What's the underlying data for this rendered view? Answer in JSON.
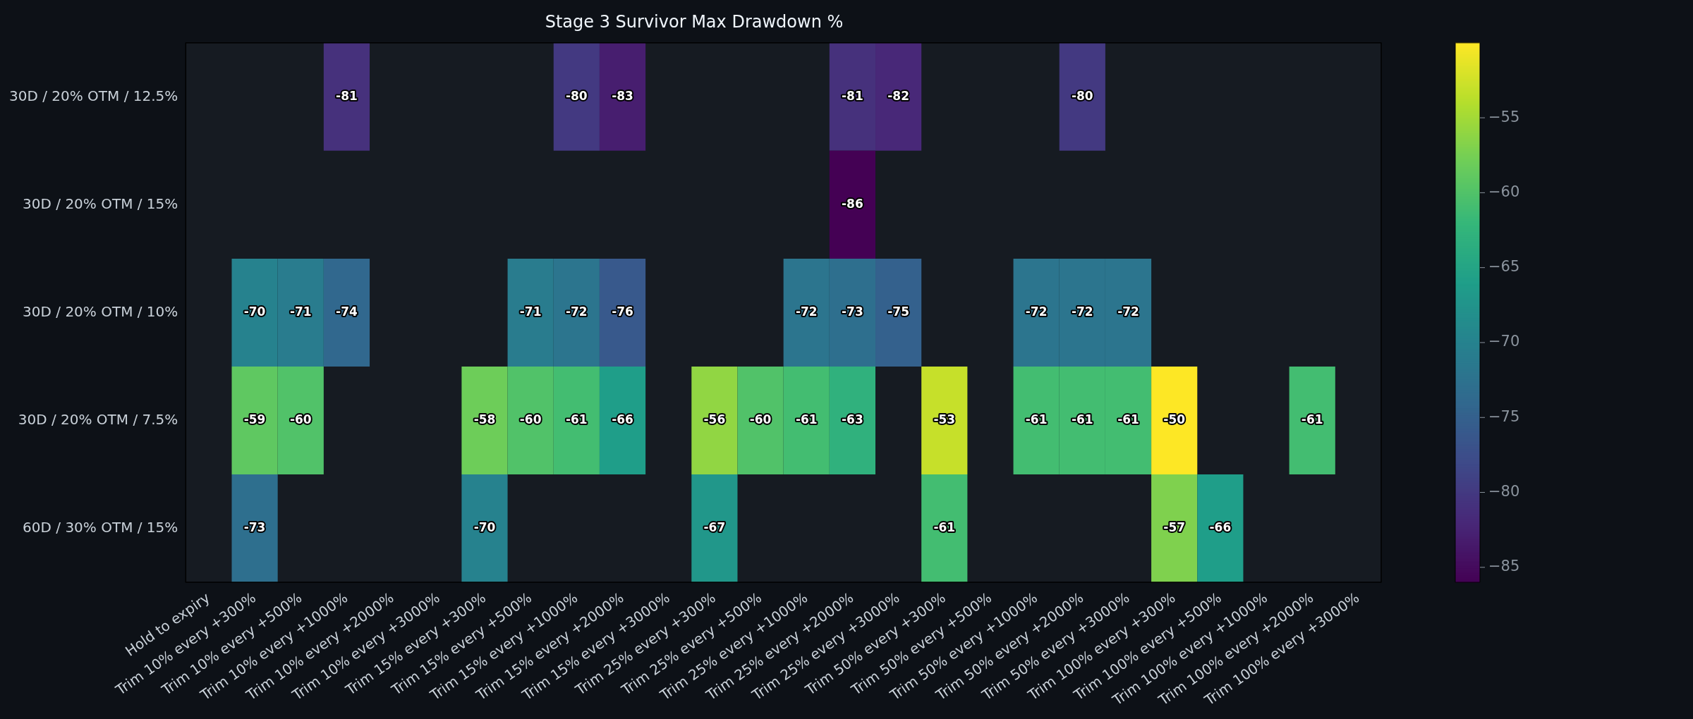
{
  "chart_data": {
    "type": "heatmap",
    "title": "Stage 3 Survivor Max Drawdown %",
    "categories": [
      "Hold to expiry",
      "Trim 10% every +300%",
      "Trim 10% every +500%",
      "Trim 10% every +1000%",
      "Trim 10% every +2000%",
      "Trim 10% every +3000%",
      "Trim 15% every +300%",
      "Trim 15% every +500%",
      "Trim 15% every +1000%",
      "Trim 15% every +2000%",
      "Trim 15% every +3000%",
      "Trim 25% every +300%",
      "Trim 25% every +500%",
      "Trim 25% every +1000%",
      "Trim 25% every +2000%",
      "Trim 25% every +3000%",
      "Trim 50% every +300%",
      "Trim 50% every +500%",
      "Trim 50% every +1000%",
      "Trim 50% every +2000%",
      "Trim 50% every +3000%",
      "Trim 100% every +300%",
      "Trim 100% every +500%",
      "Trim 100% every +1000%",
      "Trim 100% every +2000%",
      "Trim 100% every +3000%"
    ],
    "y_categories": [
      "30D / 20% OTM / 12.5%",
      "30D / 20% OTM / 15%",
      "30D / 20% OTM / 10%",
      "30D / 20% OTM / 7.5%",
      "60D / 30% OTM / 15%"
    ],
    "cells": [
      [
        null,
        null,
        null,
        -81,
        null,
        null,
        null,
        null,
        -80,
        -83,
        null,
        null,
        null,
        null,
        -81,
        -82,
        null,
        null,
        null,
        -80,
        null,
        null,
        null,
        null,
        null,
        null
      ],
      [
        null,
        null,
        null,
        null,
        null,
        null,
        null,
        null,
        null,
        null,
        null,
        null,
        null,
        null,
        -86,
        null,
        null,
        null,
        null,
        null,
        null,
        null,
        null,
        null,
        null,
        null
      ],
      [
        null,
        -70,
        -71,
        -74,
        null,
        null,
        null,
        -71,
        -72,
        -76,
        null,
        null,
        null,
        -72,
        -73,
        -75,
        null,
        null,
        -72,
        -72,
        -72,
        null,
        null,
        null,
        null,
        null
      ],
      [
        null,
        -59,
        -60,
        null,
        null,
        null,
        -58,
        -60,
        -61,
        -66,
        null,
        -56,
        -60,
        -61,
        -63,
        null,
        -53,
        null,
        -61,
        -61,
        -61,
        -50,
        null,
        null,
        -61,
        null
      ],
      [
        null,
        -73,
        null,
        null,
        null,
        null,
        -70,
        null,
        null,
        null,
        null,
        -67,
        null,
        null,
        null,
        null,
        -61,
        null,
        null,
        null,
        null,
        -57,
        -66,
        null,
        null,
        null
      ]
    ],
    "clim": [
      -86,
      -50
    ],
    "cticks": [
      -85,
      -80,
      -75,
      -70,
      -65,
      -60,
      -55
    ],
    "data_labels": true
  }
}
